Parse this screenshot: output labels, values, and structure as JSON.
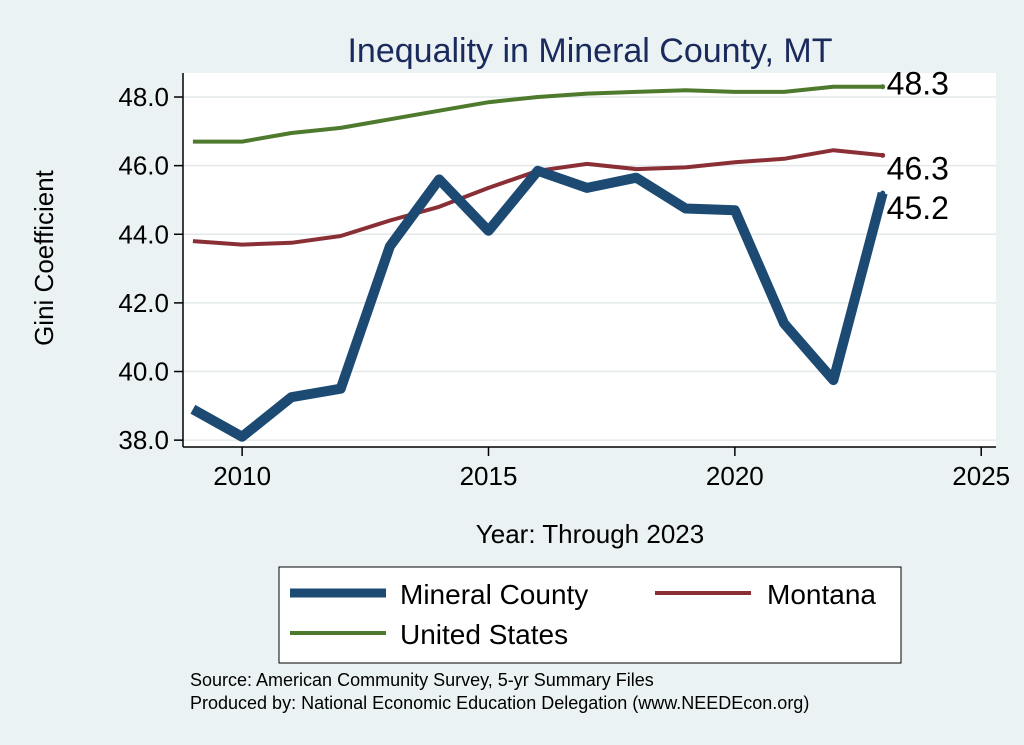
{
  "chart_data": {
    "type": "line",
    "title": "Inequality in Mineral County, MT",
    "xlabel": "Year: Through 2023",
    "ylabel": "Gini Coefficient",
    "xlim": [
      2008.8,
      2025.3
    ],
    "ylim": [
      37.8,
      48.7
    ],
    "xticks": [
      2010,
      2015,
      2020,
      2025
    ],
    "yticks": [
      38.0,
      40.0,
      42.0,
      44.0,
      46.0,
      48.0
    ],
    "ytick_labels": [
      "38.0",
      "40.0",
      "42.0",
      "44.0",
      "46.0",
      "48.0"
    ],
    "grid": true,
    "legend_position": "bottom",
    "series": [
      {
        "name": "Mineral County",
        "color": "#1c4a72",
        "x": [
          2009,
          2010,
          2011,
          2012,
          2013,
          2014,
          2015,
          2016,
          2017,
          2018,
          2019,
          2020,
          2021,
          2022,
          2023
        ],
        "values": [
          38.9,
          38.1,
          39.25,
          39.5,
          43.65,
          45.6,
          44.1,
          45.85,
          45.35,
          45.65,
          44.75,
          44.7,
          41.4,
          39.75,
          45.2
        ],
        "end_label": "45.2"
      },
      {
        "name": "Montana",
        "color": "#8a2f35",
        "x": [
          2009,
          2010,
          2011,
          2012,
          2013,
          2014,
          2015,
          2016,
          2017,
          2018,
          2019,
          2020,
          2021,
          2022,
          2023
        ],
        "values": [
          43.8,
          43.7,
          43.75,
          43.95,
          44.4,
          44.8,
          45.35,
          45.85,
          46.05,
          45.9,
          45.95,
          46.1,
          46.2,
          46.45,
          46.3
        ],
        "end_label": "46.3"
      },
      {
        "name": "United States",
        "color": "#4e7a2e",
        "x": [
          2009,
          2010,
          2011,
          2012,
          2013,
          2014,
          2015,
          2016,
          2017,
          2018,
          2019,
          2020,
          2021,
          2022,
          2023
        ],
        "values": [
          46.7,
          46.7,
          46.95,
          47.1,
          47.35,
          47.6,
          47.85,
          48.0,
          48.1,
          48.15,
          48.2,
          48.15,
          48.15,
          48.3,
          48.3
        ],
        "end_label": "48.3"
      }
    ],
    "source_lines": [
      "Source: American Community Survey, 5-yr Summary Files",
      "Produced by: National Economic Education Delegation (www.NEEDEcon.org)"
    ]
  }
}
